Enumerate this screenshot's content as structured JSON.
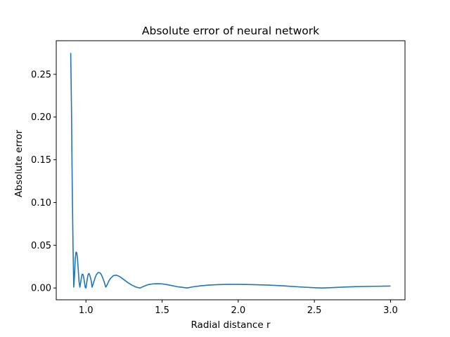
{
  "chart_data": {
    "type": "line",
    "title": "Absolute error of neural network",
    "xlabel": "Radial distance r",
    "ylabel": "Absolute error",
    "xlim": [
      0.805,
      3.095
    ],
    "ylim": [
      -0.0138,
      0.2893
    ],
    "grid": false,
    "legend": "none",
    "line_color": "#1f77b4",
    "x_ticks": [
      {
        "value": 1.0,
        "label": "1.0"
      },
      {
        "value": 1.5,
        "label": "1.5"
      },
      {
        "value": 2.0,
        "label": "2.0"
      },
      {
        "value": 2.5,
        "label": "2.5"
      },
      {
        "value": 3.0,
        "label": "3.0"
      }
    ],
    "y_ticks": [
      {
        "value": 0.0,
        "label": "0.00"
      },
      {
        "value": 0.05,
        "label": "0.05"
      },
      {
        "value": 0.1,
        "label": "0.10"
      },
      {
        "value": 0.15,
        "label": "0.15"
      },
      {
        "value": 0.2,
        "label": "0.20"
      },
      {
        "value": 0.25,
        "label": "0.25"
      }
    ],
    "series": [
      {
        "x": [
          0.9,
          0.905,
          0.91,
          0.915,
          0.92,
          0.925,
          0.93,
          0.935,
          0.94,
          0.945,
          0.95,
          0.955,
          0.96,
          0.965,
          0.97,
          0.975,
          0.98,
          0.985,
          0.99,
          0.995,
          1.0,
          1.005,
          1.01,
          1.015,
          1.02,
          1.025,
          1.03,
          1.035,
          1.04,
          1.05,
          1.06,
          1.07,
          1.08,
          1.09,
          1.1,
          1.11,
          1.12,
          1.13,
          1.14,
          1.15,
          1.16,
          1.18,
          1.2,
          1.22,
          1.24,
          1.27,
          1.3,
          1.33,
          1.355,
          1.38,
          1.41,
          1.44,
          1.47,
          1.5,
          1.53,
          1.56,
          1.6,
          1.63,
          1.665,
          1.7,
          1.75,
          1.8,
          1.85,
          1.9,
          1.95,
          2.0,
          2.05,
          2.1,
          2.2,
          2.3,
          2.4,
          2.5,
          2.55,
          2.6,
          2.7,
          2.8,
          2.9,
          3.0
        ],
        "y": [
          0.275,
          0.21,
          0.12,
          0.05,
          0.001,
          0.015,
          0.035,
          0.042,
          0.041,
          0.033,
          0.02,
          0.007,
          0.001,
          0.006,
          0.012,
          0.016,
          0.016,
          0.013,
          0.007,
          0.001,
          0.0,
          0.006,
          0.012,
          0.016,
          0.017,
          0.015,
          0.012,
          0.008,
          0.001,
          0.006,
          0.012,
          0.016,
          0.018,
          0.018,
          0.016,
          0.012,
          0.007,
          0.001,
          0.004,
          0.008,
          0.011,
          0.0145,
          0.015,
          0.0135,
          0.011,
          0.007,
          0.0035,
          0.001,
          0.0,
          0.002,
          0.004,
          0.0048,
          0.005,
          0.0048,
          0.004,
          0.003,
          0.0015,
          0.0008,
          0.0,
          0.0013,
          0.0025,
          0.0033,
          0.0038,
          0.0041,
          0.0042,
          0.0042,
          0.0041,
          0.0039,
          0.0034,
          0.0025,
          0.0013,
          0.0003,
          0.0,
          0.0003,
          0.0011,
          0.0017,
          0.002,
          0.0023
        ]
      }
    ]
  }
}
